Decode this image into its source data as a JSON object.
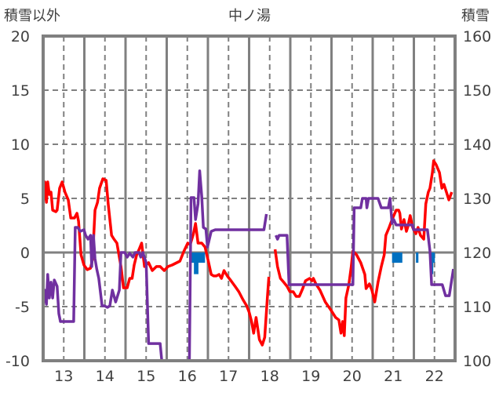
{
  "chart_data": {
    "type": "line",
    "title": "中ノ湯",
    "ylabel_left": "積雪以外",
    "ylabel_right": "積雪",
    "xlim": [
      12.5,
      22.5
    ],
    "ylim": [
      -10,
      20
    ],
    "y2lim": [
      100,
      160
    ],
    "x_ticks": [
      "13",
      "14",
      "15",
      "16",
      "17",
      "18",
      "19",
      "20",
      "21",
      "22"
    ],
    "y_ticks": [
      "20",
      "15",
      "10",
      "5",
      "0",
      "-5",
      "-10"
    ],
    "y2_ticks": [
      "160",
      "150",
      "140",
      "130",
      "120",
      "110",
      "100"
    ],
    "grid": true,
    "colors": {
      "red": "#ff0000",
      "purple": "#7030a0",
      "blue": "#0070c0",
      "axis": "#808080"
    },
    "series": [
      {
        "name": "red",
        "color": "#ff0000",
        "segments": [
          [
            [
              12.5,
              4.49
            ],
            [
              12.54,
              6.52
            ],
            [
              12.58,
              4.64
            ],
            [
              12.61,
              6.52
            ],
            [
              12.65,
              5.36
            ],
            [
              12.69,
              5.58
            ],
            [
              12.73,
              3.91
            ],
            [
              12.81,
              3.77
            ],
            [
              12.84,
              3.91
            ],
            [
              12.9,
              5.94
            ],
            [
              12.96,
              6.52
            ],
            [
              13.03,
              5.58
            ],
            [
              13.11,
              4.86
            ],
            [
              13.17,
              3.19
            ],
            [
              13.26,
              3.19
            ],
            [
              13.32,
              3.62
            ],
            [
              13.36,
              2.9
            ],
            [
              13.42,
              -0.22
            ],
            [
              13.49,
              -1.16
            ],
            [
              13.57,
              -1.59
            ],
            [
              13.65,
              -1.45
            ],
            [
              13.7,
              -0.58
            ],
            [
              13.76,
              3.91
            ],
            [
              13.82,
              4.64
            ],
            [
              13.87,
              5.94
            ],
            [
              13.95,
              6.81
            ],
            [
              14.03,
              6.67
            ],
            [
              14.08,
              4.49
            ],
            [
              14.16,
              1.59
            ],
            [
              14.22,
              1.23
            ],
            [
              14.29,
              0.87
            ],
            [
              14.39,
              -1.3
            ],
            [
              14.45,
              -3.26
            ],
            [
              14.54,
              -3.26
            ],
            [
              14.6,
              -2.39
            ],
            [
              14.66,
              -2.39
            ],
            [
              14.71,
              -1.16
            ],
            [
              14.77,
              -0.22
            ],
            [
              14.83,
              0.29
            ],
            [
              14.89,
              0.87
            ],
            [
              14.96,
              -1.3
            ],
            [
              15.06,
              -0.94
            ],
            [
              15.15,
              -1.67
            ],
            [
              15.25,
              -1.3
            ],
            [
              15.34,
              -1.3
            ],
            [
              15.44,
              -1.67
            ],
            [
              15.53,
              -1.3
            ],
            [
              15.63,
              -1.16
            ],
            [
              15.82,
              -0.8
            ],
            [
              15.92,
              0.14
            ],
            [
              16.01,
              0.87
            ],
            [
              16.07,
              0.72
            ],
            [
              16.15,
              1.74
            ],
            [
              16.2,
              2.68
            ],
            [
              16.26,
              0.87
            ],
            [
              16.35,
              0.87
            ],
            [
              16.43,
              0.51
            ],
            [
              16.51,
              -0.8
            ],
            [
              16.58,
              -2.03
            ],
            [
              16.64,
              -2.17
            ],
            [
              16.7,
              -2.17
            ],
            [
              16.77,
              -2.03
            ],
            [
              16.83,
              -2.39
            ],
            [
              16.89,
              -1.67
            ],
            [
              16.97,
              -2.17
            ],
            [
              17.06,
              -2.61
            ],
            [
              17.16,
              -3.12
            ],
            [
              17.25,
              -3.62
            ],
            [
              17.35,
              -4.35
            ],
            [
              17.44,
              -4.93
            ],
            [
              17.5,
              -5.51
            ],
            [
              17.56,
              -6.38
            ],
            [
              17.61,
              -7.46
            ],
            [
              17.67,
              -6.01
            ],
            [
              17.75,
              -8.04
            ],
            [
              17.82,
              -8.55
            ],
            [
              17.88,
              -7.83
            ],
            [
              17.94,
              -4.35
            ],
            [
              17.98,
              -2.25
            ]
          ],
          [
            [
              18.13,
              0.29
            ],
            [
              18.19,
              -1.3
            ],
            [
              18.26,
              -2.39
            ],
            [
              18.34,
              -2.75
            ],
            [
              18.42,
              -3.12
            ],
            [
              18.49,
              -3.62
            ],
            [
              18.57,
              -3.62
            ],
            [
              18.64,
              -4.06
            ],
            [
              18.72,
              -4.06
            ],
            [
              18.8,
              -3.33
            ],
            [
              18.87,
              -2.61
            ],
            [
              18.97,
              -2.39
            ],
            [
              19.03,
              -2.61
            ],
            [
              19.06,
              -2.39
            ],
            [
              19.12,
              -2.9
            ],
            [
              19.22,
              -3.48
            ],
            [
              19.35,
              -4.57
            ],
            [
              19.48,
              -5.29
            ],
            [
              19.6,
              -6.01
            ],
            [
              19.68,
              -6.23
            ],
            [
              19.73,
              -7.46
            ],
            [
              19.77,
              -6.38
            ],
            [
              19.81,
              -7.68
            ],
            [
              19.85,
              -4.2
            ],
            [
              19.92,
              -2.97
            ],
            [
              19.98,
              -1.3
            ],
            [
              20.02,
              0.14
            ],
            [
              20.11,
              -0.22
            ],
            [
              20.21,
              -0.94
            ],
            [
              20.31,
              -2.03
            ],
            [
              20.34,
              -3.33
            ],
            [
              20.42,
              -2.9
            ],
            [
              20.48,
              -3.48
            ],
            [
              20.55,
              -4.57
            ],
            [
              20.63,
              -2.75
            ],
            [
              20.71,
              -1.3
            ],
            [
              20.78,
              -0.22
            ],
            [
              20.82,
              1.59
            ],
            [
              20.9,
              2.32
            ],
            [
              20.97,
              3.04
            ],
            [
              21.07,
              3.91
            ],
            [
              21.13,
              3.91
            ],
            [
              21.16,
              3.62
            ],
            [
              21.2,
              2.17
            ],
            [
              21.26,
              3.04
            ],
            [
              21.32,
              1.96
            ],
            [
              21.35,
              2.32
            ],
            [
              21.41,
              3.41
            ],
            [
              21.47,
              2.32
            ],
            [
              21.55,
              1.74
            ],
            [
              21.6,
              2.32
            ],
            [
              21.66,
              1.59
            ],
            [
              21.74,
              1.23
            ],
            [
              21.79,
              4.49
            ],
            [
              21.85,
              5.58
            ],
            [
              21.89,
              5.94
            ],
            [
              21.95,
              7.39
            ],
            [
              21.98,
              8.48
            ],
            [
              22.04,
              8.12
            ],
            [
              22.12,
              7.39
            ],
            [
              22.18,
              5.94
            ],
            [
              22.23,
              6.3
            ],
            [
              22.29,
              5.58
            ],
            [
              22.35,
              4.86
            ],
            [
              22.42,
              5.58
            ]
          ]
        ]
      },
      {
        "name": "purple",
        "color": "#7030a0",
        "segments": [
          [
            [
              12.5,
              -4.93
            ],
            [
              12.54,
              -3.48
            ],
            [
              12.58,
              -4.78
            ],
            [
              12.61,
              -2.03
            ],
            [
              12.65,
              -4.2
            ],
            [
              12.69,
              -2.75
            ],
            [
              12.73,
              -4.2
            ],
            [
              12.77,
              -2.54
            ],
            [
              12.84,
              -3.12
            ],
            [
              12.88,
              -5.65
            ],
            [
              12.92,
              -6.38
            ],
            [
              13.24,
              -6.38
            ],
            [
              13.28,
              2.32
            ],
            [
              13.34,
              2.32
            ],
            [
              13.4,
              1.96
            ],
            [
              13.49,
              2.1
            ],
            [
              13.53,
              1.59
            ],
            [
              13.59,
              1.23
            ],
            [
              13.65,
              1.59
            ],
            [
              13.68,
              -1.3
            ],
            [
              13.72,
              1.59
            ],
            [
              13.76,
              -0.58
            ],
            [
              13.8,
              -1.52
            ],
            [
              13.85,
              -2.39
            ],
            [
              13.93,
              -4.93
            ],
            [
              13.99,
              -4.93
            ],
            [
              14.06,
              -5.07
            ],
            [
              14.12,
              -4.93
            ],
            [
              14.18,
              -3.48
            ],
            [
              14.26,
              -4.57
            ],
            [
              14.29,
              -4.2
            ],
            [
              14.35,
              -3.48
            ],
            [
              14.39,
              0
            ],
            [
              14.48,
              0
            ],
            [
              14.54,
              -0.43
            ],
            [
              14.6,
              -0.07
            ],
            [
              14.68,
              -0.43
            ],
            [
              14.73,
              0
            ],
            [
              14.83,
              0
            ],
            [
              14.87,
              -0.43
            ],
            [
              14.92,
              0
            ],
            [
              15.0,
              -0.94
            ],
            [
              15.06,
              -8.41
            ],
            [
              15.34,
              -8.41
            ],
            [
              15.38,
              -10
            ],
            [
              16.05,
              -10
            ],
            [
              16.09,
              5.07
            ],
            [
              16.16,
              5.07
            ],
            [
              16.2,
              3.04
            ],
            [
              16.26,
              4.49
            ],
            [
              16.3,
              7.54
            ],
            [
              16.35,
              5.22
            ],
            [
              16.39,
              2.32
            ],
            [
              16.45,
              2.17
            ],
            [
              16.49,
              0.51
            ],
            [
              16.58,
              1.96
            ],
            [
              16.68,
              2.1
            ],
            [
              17.86,
              2.1
            ],
            [
              17.92,
              3.55
            ]
          ],
          [
            [
              18.15,
              1.59
            ],
            [
              18.19,
              1.23
            ],
            [
              18.23,
              1.59
            ],
            [
              18.42,
              1.59
            ],
            [
              18.47,
              -2.97
            ],
            [
              20.02,
              -2.97
            ],
            [
              20.05,
              4.13
            ],
            [
              20.21,
              4.13
            ],
            [
              20.25,
              5.0
            ],
            [
              20.34,
              5.0
            ],
            [
              20.36,
              4.13
            ],
            [
              20.4,
              5.0
            ],
            [
              20.63,
              5.0
            ],
            [
              20.71,
              4.13
            ],
            [
              20.88,
              4.13
            ],
            [
              20.92,
              5.0
            ],
            [
              20.97,
              2.68
            ],
            [
              21.01,
              3.04
            ],
            [
              21.07,
              2.54
            ],
            [
              21.47,
              2.54
            ],
            [
              21.49,
              2.1
            ],
            [
              21.83,
              2.1
            ],
            [
              21.89,
              0.14
            ],
            [
              21.93,
              -2.97
            ],
            [
              22.19,
              -2.97
            ],
            [
              22.27,
              -3.99
            ],
            [
              22.36,
              -3.99
            ],
            [
              22.46,
              -1.52
            ]
          ]
        ]
      }
    ],
    "snow_bars": {
      "name": "積雪",
      "color": "#0070c0",
      "base": 120,
      "bars": [
        {
          "x0": 16.09,
          "x1": 16.43,
          "value": 118.1
        },
        {
          "x0": 16.16,
          "x1": 16.27,
          "value": 116
        },
        {
          "x0": 20.97,
          "x1": 21.22,
          "value": 118.1
        },
        {
          "x0": 21.55,
          "x1": 21.61,
          "value": 118.1
        },
        {
          "x0": 21.89,
          "x1": 22.01,
          "value": 118.1
        },
        {
          "x0": 21.91,
          "x1": 21.97,
          "value": 116
        }
      ]
    }
  }
}
